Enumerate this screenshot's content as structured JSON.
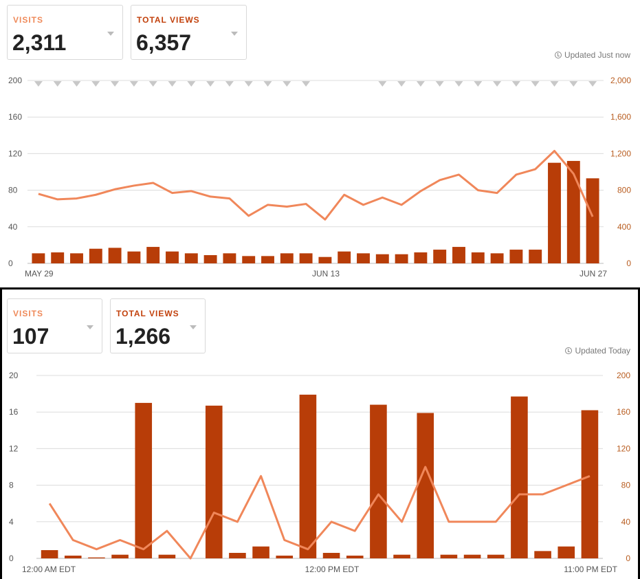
{
  "colors": {
    "bar": "#b83d08",
    "line": "#f0875a",
    "views_label": "#c2410c",
    "visits_label": "#ef8a5a",
    "axis_text": "#555555",
    "right_axis_text": "#b85c1f"
  },
  "top": {
    "visits_label": "VISITS",
    "visits_value": "2,311",
    "views_label": "TOTAL VIEWS",
    "views_value": "6,357",
    "updated": "Updated Just now"
  },
  "bottom": {
    "visits_label": "VISITS",
    "visits_value": "107",
    "views_label": "TOTAL VIEWS",
    "views_value": "1,266",
    "updated": "Updated Today"
  },
  "chart_data": [
    {
      "type": "bar",
      "title": "",
      "left_axis_ticks": [
        "200",
        "160",
        "120",
        "80",
        "40",
        "0"
      ],
      "right_axis_ticks": [
        "2,000",
        "1,600",
        "1,200",
        "800",
        "400",
        "0"
      ],
      "ylim": [
        0,
        200
      ],
      "ylim_right": [
        0,
        2000
      ],
      "x_tick_labels": [
        "MAY 29",
        "JUN 13",
        "JUN 27"
      ],
      "grid": true,
      "annotation_markers": [
        1,
        1,
        1,
        1,
        1,
        1,
        1,
        1,
        1,
        1,
        1,
        1,
        1,
        1,
        1,
        0,
        0,
        0,
        1,
        1,
        1,
        1,
        1,
        1,
        1,
        1,
        1,
        1,
        1,
        1
      ],
      "series": [
        {
          "type": "bar",
          "axis": "left",
          "values": [
            11,
            12,
            11,
            16,
            17,
            13,
            18,
            13,
            11,
            9,
            11,
            8,
            8,
            11,
            11,
            7,
            13,
            11,
            10,
            10,
            12,
            15,
            18,
            12,
            11,
            15,
            15,
            110,
            112,
            93
          ]
        },
        {
          "type": "line",
          "axis": "right",
          "values": [
            760,
            700,
            710,
            750,
            810,
            850,
            880,
            770,
            790,
            730,
            710,
            520,
            640,
            620,
            650,
            480,
            750,
            640,
            720,
            640,
            790,
            910,
            970,
            800,
            770,
            970,
            1030,
            1230,
            980,
            510
          ]
        }
      ]
    },
    {
      "type": "bar",
      "title": "",
      "left_axis_ticks": [
        "20",
        "16",
        "12",
        "8",
        "4",
        "0"
      ],
      "right_axis_ticks": [
        "200",
        "160",
        "120",
        "80",
        "40",
        "0"
      ],
      "ylim": [
        0,
        20
      ],
      "ylim_right": [
        0,
        200
      ],
      "x_tick_labels": [
        "12:00 AM EDT",
        "12:00 PM EDT",
        "11:00 PM EDT"
      ],
      "grid": true,
      "series": [
        {
          "type": "bar",
          "axis": "left",
          "values": [
            0.9,
            0.3,
            0.1,
            0.4,
            17,
            0.4,
            0,
            16.7,
            0.6,
            1.3,
            0.3,
            17.9,
            0.6,
            0.3,
            16.8,
            0.4,
            15.9,
            0.4,
            0.4,
            0.4,
            17.7,
            0.8,
            1.3,
            16.2
          ]
        },
        {
          "type": "line",
          "axis": "right",
          "values": [
            60,
            20,
            10,
            20,
            10,
            30,
            0,
            50,
            40,
            90,
            20,
            10,
            40,
            30,
            70,
            40,
            100,
            40,
            40,
            40,
            70,
            70,
            80,
            90
          ]
        }
      ]
    }
  ]
}
